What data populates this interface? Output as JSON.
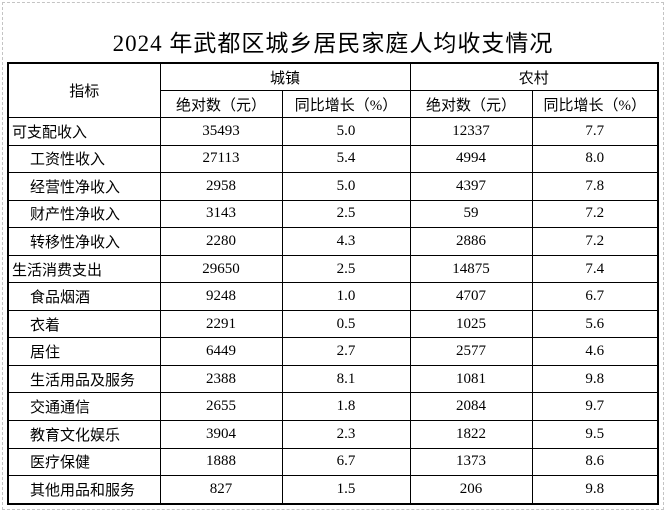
{
  "title": "2024 年武都区城乡居民家庭人均收支情况",
  "table": {
    "header": {
      "indicator": "指标",
      "urban": "城镇",
      "rural": "农村",
      "absolute": "绝对数（元）",
      "growth": "同比增长（%）"
    },
    "rows": [
      {
        "label": "可支配收入",
        "indent": false,
        "urban_absolute": "35493",
        "urban_growth": "5.0",
        "rural_absolute": "12337",
        "rural_growth": "7.7"
      },
      {
        "label": "工资性收入",
        "indent": true,
        "urban_absolute": "27113",
        "urban_growth": "5.4",
        "rural_absolute": "4994",
        "rural_growth": "8.0"
      },
      {
        "label": "经营性净收入",
        "indent": true,
        "urban_absolute": "2958",
        "urban_growth": "5.0",
        "rural_absolute": "4397",
        "rural_growth": "7.8"
      },
      {
        "label": "财产性净收入",
        "indent": true,
        "urban_absolute": "3143",
        "urban_growth": "2.5",
        "rural_absolute": "59",
        "rural_growth": "7.2"
      },
      {
        "label": "转移性净收入",
        "indent": true,
        "urban_absolute": "2280",
        "urban_growth": "4.3",
        "rural_absolute": "2886",
        "rural_growth": "7.2"
      },
      {
        "label": "生活消费支出",
        "indent": false,
        "urban_absolute": "29650",
        "urban_growth": "2.5",
        "rural_absolute": "14875",
        "rural_growth": "7.4"
      },
      {
        "label": "食品烟酒",
        "indent": true,
        "urban_absolute": "9248",
        "urban_growth": "1.0",
        "rural_absolute": "4707",
        "rural_growth": "6.7"
      },
      {
        "label": "衣着",
        "indent": true,
        "urban_absolute": "2291",
        "urban_growth": "0.5",
        "rural_absolute": "1025",
        "rural_growth": "5.6"
      },
      {
        "label": "居住",
        "indent": true,
        "urban_absolute": "6449",
        "urban_growth": "2.7",
        "rural_absolute": "2577",
        "rural_growth": "4.6"
      },
      {
        "label": "生活用品及服务",
        "indent": true,
        "urban_absolute": "2388",
        "urban_growth": "8.1",
        "rural_absolute": "1081",
        "rural_growth": "9.8"
      },
      {
        "label": "交通通信",
        "indent": true,
        "urban_absolute": "2655",
        "urban_growth": "1.8",
        "rural_absolute": "2084",
        "rural_growth": "9.7"
      },
      {
        "label": "教育文化娱乐",
        "indent": true,
        "urban_absolute": "3904",
        "urban_growth": "2.3",
        "rural_absolute": "1822",
        "rural_growth": "9.5"
      },
      {
        "label": "医疗保健",
        "indent": true,
        "urban_absolute": "1888",
        "urban_growth": "6.7",
        "rural_absolute": "1373",
        "rural_growth": "8.6"
      },
      {
        "label": "其他用品和服务",
        "indent": true,
        "urban_absolute": "827",
        "urban_growth": "1.5",
        "rural_absolute": "206",
        "rural_growth": "9.8"
      }
    ]
  },
  "colors": {
    "text": "#000000",
    "table_border": "#000000",
    "background": "#ffffff",
    "page_frame_dashed": "#c4c4c4"
  }
}
